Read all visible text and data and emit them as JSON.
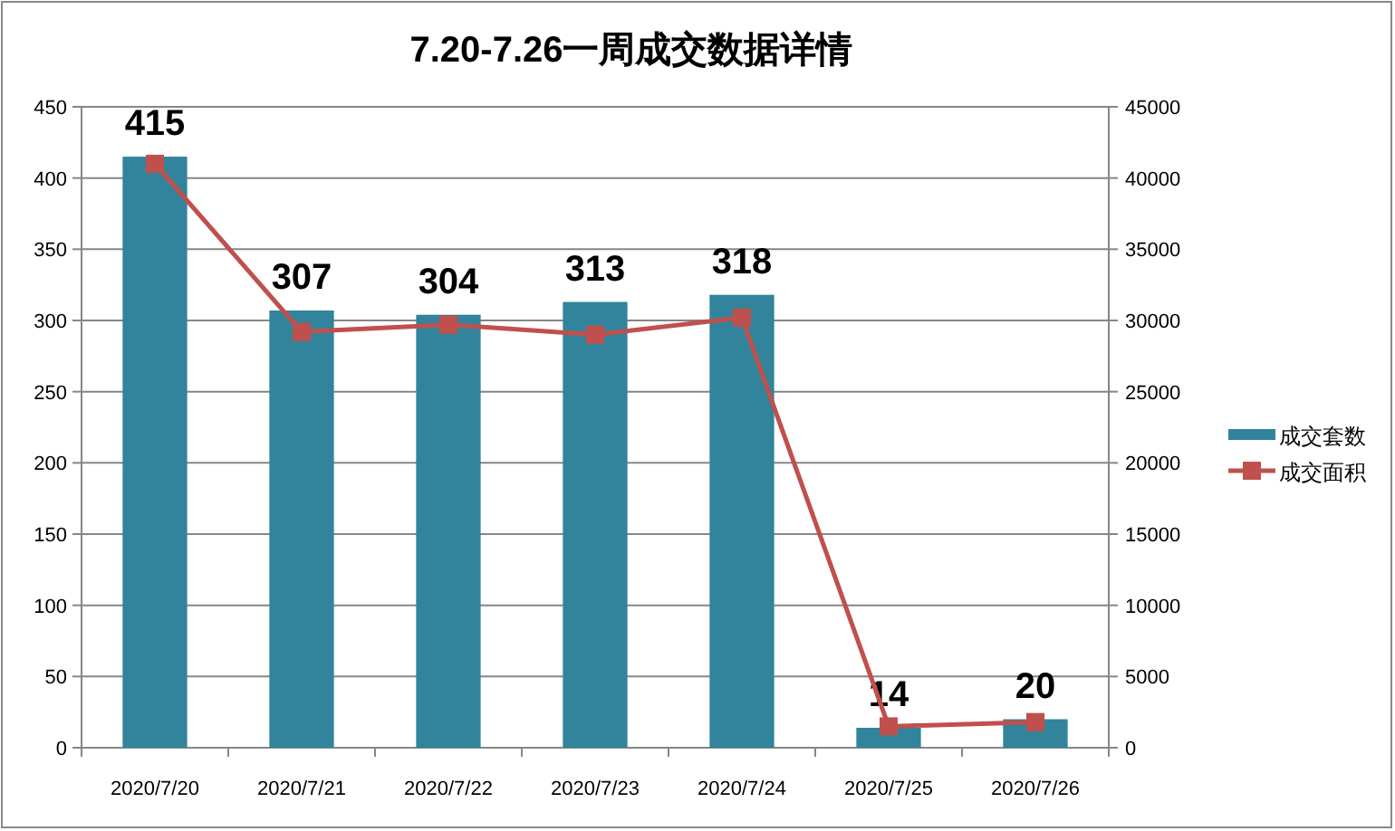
{
  "chart_data": {
    "type": "bar",
    "title": "7.20-7.26一周成交数据详情",
    "categories": [
      "2020/7/20",
      "2020/7/21",
      "2020/7/22",
      "2020/7/23",
      "2020/7/24",
      "2020/7/25",
      "2020/7/26"
    ],
    "series": [
      {
        "name": "成交套数",
        "color": "#31849b",
        "values": [
          415,
          307,
          304,
          313,
          318,
          14,
          20
        ],
        "value_labels": [
          "415",
          "307",
          "304",
          "313",
          "318",
          "14",
          "20"
        ]
      },
      {
        "name": "成交面积",
        "type": "line",
        "axis": "y2",
        "color": "#c0504d",
        "marker": "square",
        "values": [
          41000,
          29200,
          29700,
          29000,
          30200,
          1500,
          1800
        ]
      }
    ],
    "ylim": [
      0,
      450
    ],
    "yticks": [
      0,
      50,
      100,
      150,
      200,
      250,
      300,
      350,
      400,
      450
    ],
    "y2lim": [
      0,
      45000
    ],
    "y2ticks": [
      0,
      5000,
      10000,
      15000,
      20000,
      25000,
      30000,
      35000,
      40000,
      45000
    ],
    "grid": "y",
    "legend": "right"
  }
}
